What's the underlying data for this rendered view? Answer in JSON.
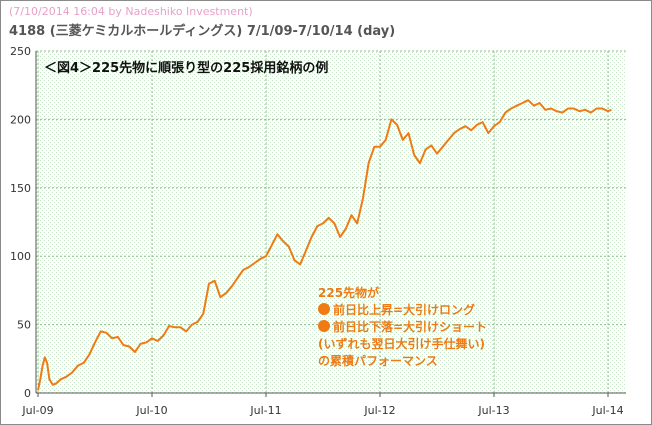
{
  "header": {
    "credit": "(7/10/2014 16:04 by Nadeshiko Investment)",
    "title": "4188 (三菱ケミカルホールディングス) 7/1/09-7/10/14 (day)"
  },
  "colors": {
    "line": "#f07a14",
    "grid": "#88c088",
    "plot_bg": "#eef7ee",
    "axis_text": "#333333"
  },
  "chart_data": {
    "type": "line",
    "title": "＜図4＞225先物に順張り型の225採用銘柄の例",
    "xlabel": "",
    "ylabel": "",
    "ylim": [
      0,
      250
    ],
    "yticks": [
      0,
      50,
      100,
      150,
      200,
      250
    ],
    "xticks": [
      {
        "label": "Jul-09",
        "t": 0
      },
      {
        "label": "Jul-10",
        "t": 1
      },
      {
        "label": "Jul-11",
        "t": 2
      },
      {
        "label": "Jul-12",
        "t": 3
      },
      {
        "label": "Jul-13",
        "t": 4
      },
      {
        "label": "Jul-14",
        "t": 5
      }
    ],
    "grid": true,
    "legend_position": "bottom-center",
    "annotation": [
      "225先物が",
      "前日比上昇=大引けロング",
      "前日比下落=大引けショート",
      "(いずれも翌日大引け手仕舞い)",
      "の累積パフォーマンス"
    ],
    "series": [
      {
        "x": [
          0,
          0.02,
          0.04,
          0.06,
          0.08,
          0.1,
          0.13,
          0.16,
          0.2,
          0.25,
          0.3,
          0.35,
          0.4,
          0.45,
          0.5,
          0.55,
          0.6,
          0.65,
          0.7,
          0.75,
          0.8,
          0.85,
          0.9,
          0.95,
          1.0,
          1.05,
          1.1,
          1.15,
          1.2,
          1.25,
          1.3,
          1.35,
          1.4,
          1.45,
          1.5,
          1.55,
          1.6,
          1.65,
          1.7,
          1.75,
          1.8,
          1.85,
          1.9,
          1.95,
          2.0,
          2.05,
          2.1,
          2.15,
          2.2,
          2.25,
          2.3,
          2.35,
          2.4,
          2.45,
          2.5,
          2.55,
          2.6,
          2.65,
          2.7,
          2.75,
          2.8,
          2.85,
          2.9,
          2.95,
          3.0,
          3.05,
          3.1,
          3.15,
          3.2,
          3.25,
          3.3,
          3.35,
          3.4,
          3.45,
          3.5,
          3.55,
          3.6,
          3.65,
          3.7,
          3.75,
          3.8,
          3.85,
          3.9,
          3.95,
          4.0,
          4.05,
          4.1,
          4.15,
          4.2,
          4.25,
          4.3,
          4.35,
          4.4,
          4.45,
          4.5,
          4.55,
          4.6,
          4.65,
          4.7,
          4.75,
          4.8,
          4.85,
          4.9,
          4.95,
          5.0,
          5.03
        ],
        "values": [
          2,
          10,
          20,
          26,
          22,
          10,
          6,
          7,
          10,
          12,
          15,
          20,
          22,
          28,
          37,
          45,
          44,
          40,
          41,
          35,
          34,
          30,
          36,
          37,
          40,
          38,
          42,
          49,
          48,
          48,
          45,
          50,
          52,
          58,
          80,
          82,
          70,
          73,
          78,
          84,
          90,
          92,
          95,
          98,
          100,
          108,
          116,
          111,
          107,
          97,
          94,
          104,
          114,
          122,
          124,
          128,
          124,
          114,
          120,
          130,
          124,
          142,
          168,
          180,
          180,
          185,
          200,
          196,
          185,
          190,
          174,
          168,
          178,
          181,
          175,
          180,
          185,
          190,
          193,
          195,
          192,
          196,
          198,
          190,
          195,
          198,
          205,
          208,
          210,
          212,
          214,
          210,
          212,
          207,
          208,
          206,
          205,
          208,
          208,
          206,
          207,
          205,
          208,
          208,
          206,
          207
        ]
      }
    ]
  }
}
